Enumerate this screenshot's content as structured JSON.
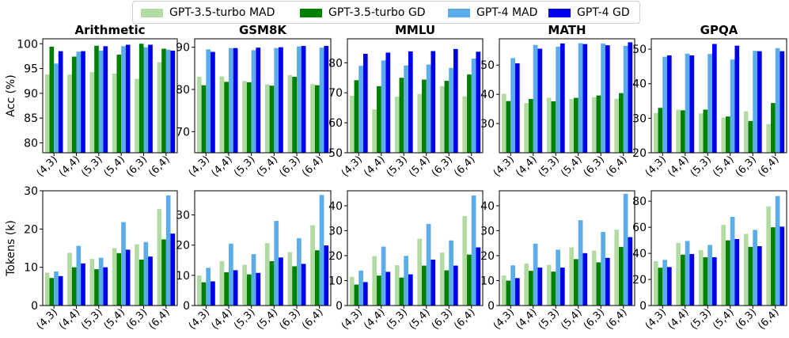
{
  "legend": {
    "items": [
      {
        "label": "GPT-3.5-turbo MAD",
        "color": "#b2dba3"
      },
      {
        "label": "GPT-3.5-turbo GD",
        "color": "#008000"
      },
      {
        "label": "GPT-4 MAD",
        "color": "#5aade8"
      },
      {
        "label": "GPT-4 GD",
        "color": "#0000ee"
      }
    ]
  },
  "chart_data": {
    "type": "bar",
    "categories": [
      "(4,3)",
      "(4,4)",
      "(5,3)",
      "(5,4)",
      "(6,3)",
      "(6,4)"
    ],
    "series_names": [
      "GPT-3.5-turbo MAD",
      "GPT-3.5-turbo GD",
      "GPT-4 MAD",
      "GPT-4 GD"
    ],
    "series_colors": [
      "#b2dba3",
      "#008000",
      "#5aade8",
      "#0000ee"
    ],
    "rows": [
      {
        "ylabel": "Acc (%)",
        "panels": [
          {
            "title": "Arithmetic",
            "ylim": [
              78,
              101
            ],
            "yticks": [
              80,
              85,
              90,
              95,
              100
            ],
            "values": [
              [
                93.8,
                99.4,
                96.0,
                98.5
              ],
              [
                93.8,
                97.4,
                98.4,
                98.5
              ],
              [
                94.3,
                99.6,
                98.6,
                99.5
              ],
              [
                94.0,
                97.8,
                99.5,
                99.8
              ],
              [
                92.9,
                100.0,
                99.3,
                99.8
              ],
              [
                96.3,
                99.0,
                98.8,
                98.6
              ]
            ]
          },
          {
            "title": "GSM8K",
            "ylim": [
              65,
              92
            ],
            "yticks": [
              70,
              80,
              90
            ],
            "values": [
              [
                83.0,
                81.0,
                89.5,
                88.9
              ],
              [
                83.1,
                81.8,
                89.8,
                89.8
              ],
              [
                82.0,
                81.7,
                89.3,
                89.9
              ],
              [
                81.2,
                80.9,
                89.8,
                90.0
              ],
              [
                83.4,
                83.0,
                90.2,
                90.3
              ],
              [
                81.3,
                81.0,
                89.9,
                90.3
              ]
            ]
          },
          {
            "title": "MMLU",
            "ylim": [
              50,
              88
            ],
            "yticks": [
              50,
              60,
              70,
              80
            ],
            "values": [
              [
                69.0,
                74.2,
                79.0,
                83.0
              ],
              [
                64.5,
                72.2,
                80.8,
                83.4
              ],
              [
                68.7,
                75.0,
                79.1,
                83.8
              ],
              [
                69.6,
                74.4,
                79.4,
                83.9
              ],
              [
                72.2,
                74.0,
                78.3,
                84.6
              ],
              [
                68.8,
                76.1,
                81.4,
                83.7
              ]
            ]
          },
          {
            "title": "MATH",
            "ylim": [
              20,
              59
            ],
            "yticks": [
              30,
              40,
              50
            ],
            "values": [
              [
                40.2,
                37.7,
                52.4,
                50.6
              ],
              [
                37.0,
                38.4,
                56.9,
                55.6
              ],
              [
                38.8,
                37.6,
                56.3,
                57.4
              ],
              [
                38.4,
                38.8,
                57.5,
                57.2
              ],
              [
                39.0,
                39.6,
                57.4,
                56.8
              ],
              [
                38.5,
                40.4,
                56.6,
                57.8
              ]
            ]
          },
          {
            "title": "GPQA",
            "ylim": [
              20,
              53
            ],
            "yticks": [
              20,
              30,
              40,
              50
            ],
            "values": [
              [
                31.5,
                33.0,
                47.8,
                48.2
              ],
              [
                32.5,
                32.3,
                48.7,
                48.2
              ],
              [
                31.4,
                32.5,
                48.6,
                51.5
              ],
              [
                30.2,
                30.5,
                47.0,
                51.0
              ],
              [
                32.0,
                29.2,
                49.5,
                49.4
              ],
              [
                28.3,
                34.4,
                50.3,
                49.4
              ]
            ]
          }
        ]
      },
      {
        "ylabel": "Tokens (k)",
        "panels": [
          {
            "title": "",
            "ylim": [
              0,
              30
            ],
            "yticks": [
              0,
              10,
              20,
              30
            ],
            "values": [
              [
                8.6,
                7.2,
                8.9,
                7.7
              ],
              [
                13.8,
                10.0,
                15.6,
                11.0
              ],
              [
                12.2,
                9.5,
                12.5,
                10.0
              ],
              [
                15.0,
                13.7,
                21.8,
                14.6
              ],
              [
                16.0,
                12.0,
                16.6,
                12.8
              ],
              [
                25.2,
                17.3,
                28.8,
                18.8
              ]
            ]
          },
          {
            "title": "",
            "ylim": [
              0,
              38
            ],
            "yticks": [
              0,
              10,
              20,
              30
            ],
            "values": [
              [
                10.0,
                7.7,
                12.5,
                8.0
              ],
              [
                14.7,
                11.0,
                20.5,
                11.7
              ],
              [
                13.5,
                10.3,
                17.0,
                10.8
              ],
              [
                20.7,
                14.7,
                28.0,
                15.9
              ],
              [
                17.7,
                13.0,
                22.3,
                13.8
              ],
              [
                26.6,
                18.3,
                36.6,
                19.9
              ]
            ]
          },
          {
            "title": "",
            "ylim": [
              0,
              46
            ],
            "yticks": [
              0,
              10,
              20,
              30,
              40
            ],
            "values": [
              [
                11.5,
                8.4,
                14.0,
                9.4
              ],
              [
                19.8,
                12.0,
                23.6,
                13.5
              ],
              [
                16.2,
                11.2,
                19.9,
                12.5
              ],
              [
                26.8,
                16.0,
                32.7,
                18.4
              ],
              [
                21.2,
                14.1,
                26.1,
                16.0
              ],
              [
                35.8,
                20.4,
                44.1,
                23.3
              ]
            ]
          },
          {
            "title": "",
            "ylim": [
              0,
              46
            ],
            "yticks": [
              0,
              10,
              20,
              30,
              40
            ],
            "values": [
              [
                12.0,
                10.0,
                16.1,
                11.0
              ],
              [
                16.8,
                13.9,
                24.8,
                15.2
              ],
              [
                16.3,
                13.6,
                22.4,
                15.2
              ],
              [
                23.3,
                18.6,
                34.2,
                21.0
              ],
              [
                22.0,
                17.3,
                29.5,
                19.1
              ],
              [
                30.4,
                23.5,
                44.8,
                27.4
              ]
            ]
          },
          {
            "title": "",
            "ylim": [
              0,
              88
            ],
            "yticks": [
              0,
              20,
              40,
              60,
              80
            ],
            "values": [
              [
                34.0,
                29.0,
                35.0,
                29.5
              ],
              [
                48.0,
                39.0,
                49.5,
                39.5
              ],
              [
                42.5,
                37.0,
                46.5,
                37.0
              ],
              [
                62.0,
                50.0,
                68.0,
                51.0
              ],
              [
                55.0,
                45.0,
                58.0,
                45.5
              ],
              [
                76.0,
                60.0,
                84.0,
                60.5
              ]
            ]
          }
        ]
      }
    ]
  }
}
